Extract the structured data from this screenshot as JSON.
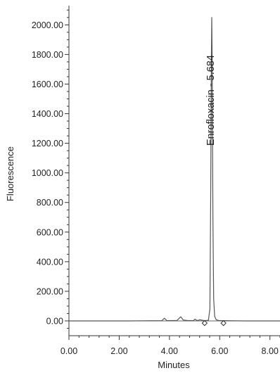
{
  "chart_data": {
    "type": "line",
    "title": "",
    "xlabel": "Minutes",
    "ylabel": "Fluorescence",
    "xlim": [
      0.0,
      8.4
    ],
    "ylim": [
      -100,
      2130
    ],
    "x_ticks": [
      "0.00",
      "2.00",
      "4.00",
      "6.00",
      "8.00"
    ],
    "y_ticks": [
      "0.00",
      "200.00",
      "400.00",
      "600.00",
      "800.00",
      "1000.00",
      "1200.00",
      "1400.00",
      "1600.00",
      "1800.00",
      "2000.00"
    ],
    "grid": false,
    "series": [
      {
        "name": "",
        "x": [
          0.0,
          2.4,
          3.7,
          3.8,
          3.9,
          4.3,
          4.45,
          4.55,
          4.7,
          4.95,
          5.02,
          5.08,
          5.15,
          5.2,
          5.4,
          5.55,
          5.61,
          5.64,
          5.67,
          5.684,
          5.7,
          5.73,
          5.76,
          5.8,
          5.86,
          5.95,
          6.1,
          6.2,
          6.4,
          7.0,
          8.4
        ],
        "y": [
          0,
          0,
          2,
          18,
          2,
          3,
          28,
          6,
          3,
          2,
          12,
          4,
          3,
          8,
          2,
          4,
          80,
          800,
          1800,
          2050,
          1750,
          700,
          150,
          30,
          8,
          3,
          2,
          2,
          1,
          0,
          0
        ]
      }
    ],
    "annotations": [
      {
        "text": "Enrofloxacin - 5.684",
        "x": 5.684
      }
    ],
    "baseline_markers": [
      {
        "x": 5.4,
        "y": -15
      },
      {
        "x": 6.15,
        "y": -15
      }
    ]
  }
}
